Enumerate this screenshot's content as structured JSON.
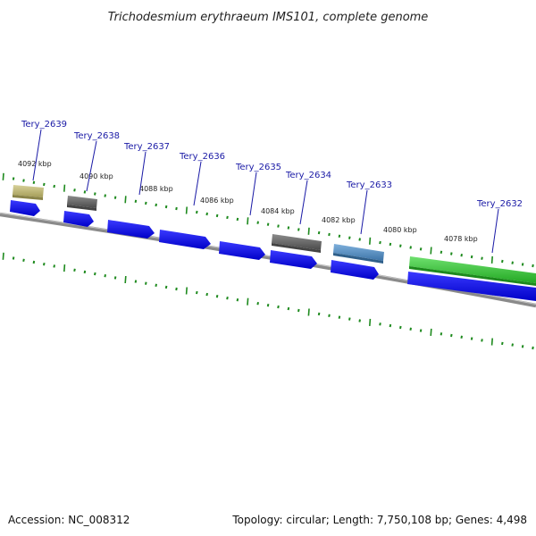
{
  "map": {
    "title": "Trichodesmium erythraeum IMS101, complete genome",
    "accession": "Accession: NC_008312",
    "summary": "Topology: circular; Length: 7,750,108 bp; Genes: 4,498",
    "colors": {
      "cds": "#0a0af0",
      "backbone": "#8a8a8a",
      "ticks": "#1e8a1e",
      "label_text": "#1a1aa6",
      "feature_olive": "#c4bd7a",
      "feature_gray": "#707070",
      "feature_blue": "#4f8fc8",
      "feature_green": "#3fc83f"
    },
    "kbp_labels": [
      "4092 kbp",
      "4090 kbp",
      "4088 kbp",
      "4086 kbp",
      "4084 kbp",
      "4082 kbp",
      "4080 kbp",
      "4078 kbp"
    ],
    "locus_tags": [
      "Tery_2639",
      "Tery_2638",
      "Tery_2637",
      "Tery_2636",
      "Tery_2635",
      "Tery_2634",
      "Tery_2633",
      "Tery_2632"
    ]
  }
}
